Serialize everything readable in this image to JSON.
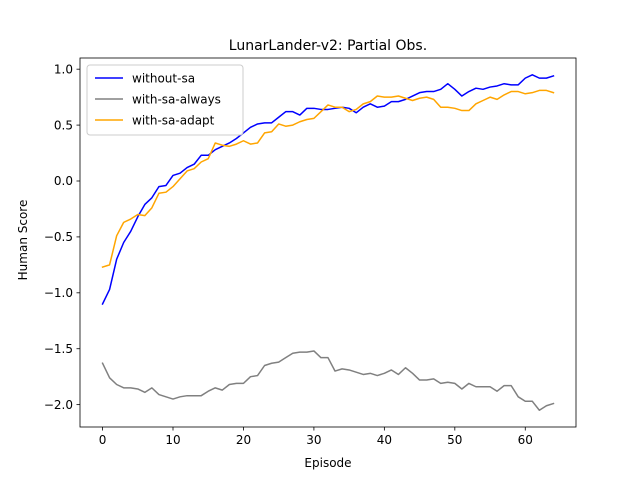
{
  "chart_data": {
    "type": "line",
    "title": "LunarLander-v2: Partial Obs.",
    "xlabel": "Episode",
    "ylabel": "Human Score",
    "xlim": [
      -3.2,
      67.2
    ],
    "ylim": [
      -2.2,
      1.1
    ],
    "xticks": [
      0,
      10,
      20,
      30,
      40,
      50,
      60
    ],
    "yticks": [
      -2.0,
      -1.5,
      -1.0,
      -0.5,
      0.0,
      0.5,
      1.0
    ],
    "ytick_labels": [
      "−2.0",
      "−1.5",
      "−1.0",
      "−0.5",
      "0.0",
      "0.5",
      "1.0"
    ],
    "grid": false,
    "legend_position": "top-left",
    "x": [
      0,
      1,
      2,
      3,
      4,
      5,
      6,
      7,
      8,
      9,
      10,
      11,
      12,
      13,
      14,
      15,
      16,
      17,
      18,
      19,
      20,
      21,
      22,
      23,
      24,
      25,
      26,
      27,
      28,
      29,
      30,
      31,
      32,
      33,
      34,
      35,
      36,
      37,
      38,
      39,
      40,
      41,
      42,
      43,
      44,
      45,
      46,
      47,
      48,
      49,
      50,
      51,
      52,
      53,
      54,
      55,
      56,
      57,
      58,
      59,
      60,
      61,
      62,
      63,
      64
    ],
    "series": [
      {
        "name": "without-sa",
        "color": "#0000ff",
        "values": [
          -1.1,
          -0.97,
          -0.7,
          -0.55,
          -0.45,
          -0.32,
          -0.21,
          -0.15,
          -0.05,
          -0.04,
          0.05,
          0.07,
          0.12,
          0.15,
          0.23,
          0.23,
          0.28,
          0.31,
          0.34,
          0.38,
          0.43,
          0.48,
          0.51,
          0.52,
          0.52,
          0.57,
          0.62,
          0.62,
          0.59,
          0.65,
          0.65,
          0.64,
          0.64,
          0.65,
          0.66,
          0.65,
          0.61,
          0.66,
          0.69,
          0.66,
          0.67,
          0.71,
          0.71,
          0.73,
          0.76,
          0.79,
          0.8,
          0.8,
          0.82,
          0.87,
          0.82,
          0.76,
          0.8,
          0.83,
          0.82,
          0.84,
          0.85,
          0.87,
          0.86,
          0.86,
          0.92,
          0.95,
          0.92,
          0.92,
          0.94
        ]
      },
      {
        "name": "with-sa-always",
        "color": "#808080",
        "values": [
          -1.63,
          -1.76,
          -1.82,
          -1.85,
          -1.85,
          -1.86,
          -1.89,
          -1.85,
          -1.91,
          -1.93,
          -1.95,
          -1.93,
          -1.92,
          -1.92,
          -1.92,
          -1.88,
          -1.85,
          -1.87,
          -1.82,
          -1.81,
          -1.81,
          -1.75,
          -1.74,
          -1.65,
          -1.63,
          -1.62,
          -1.58,
          -1.54,
          -1.53,
          -1.53,
          -1.52,
          -1.58,
          -1.58,
          -1.7,
          -1.68,
          -1.69,
          -1.71,
          -1.73,
          -1.72,
          -1.74,
          -1.72,
          -1.69,
          -1.73,
          -1.67,
          -1.72,
          -1.78,
          -1.78,
          -1.77,
          -1.81,
          -1.8,
          -1.81,
          -1.86,
          -1.81,
          -1.84,
          -1.84,
          -1.84,
          -1.88,
          -1.83,
          -1.83,
          -1.93,
          -1.97,
          -1.97,
          -2.05,
          -2.01,
          -1.99
        ]
      },
      {
        "name": "with-sa-adapt",
        "color": "#ffa500",
        "values": [
          -0.77,
          -0.75,
          -0.49,
          -0.37,
          -0.34,
          -0.3,
          -0.31,
          -0.24,
          -0.11,
          -0.1,
          -0.05,
          0.02,
          0.09,
          0.11,
          0.17,
          0.2,
          0.34,
          0.32,
          0.31,
          0.33,
          0.36,
          0.33,
          0.34,
          0.43,
          0.44,
          0.51,
          0.49,
          0.5,
          0.53,
          0.55,
          0.56,
          0.62,
          0.68,
          0.66,
          0.66,
          0.62,
          0.64,
          0.69,
          0.71,
          0.76,
          0.75,
          0.75,
          0.76,
          0.74,
          0.72,
          0.74,
          0.75,
          0.73,
          0.66,
          0.66,
          0.65,
          0.63,
          0.63,
          0.69,
          0.72,
          0.75,
          0.73,
          0.77,
          0.8,
          0.8,
          0.78,
          0.79,
          0.81,
          0.81,
          0.79
        ]
      }
    ]
  }
}
